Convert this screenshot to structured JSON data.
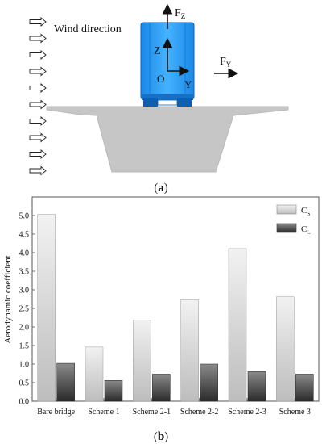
{
  "diagram": {
    "wind_label": "Wind direction",
    "fz_main": "F",
    "fz_sub": "Z",
    "fy_main": "F",
    "fy_sub": "Y",
    "axis_z": "Z",
    "axis_y": "Y",
    "axis_o": "O",
    "caption": "(a)",
    "colors": {
      "train": "#2a9df4",
      "train_dark": "#1070c8",
      "deck": "#c8c8c8"
    }
  },
  "chart_caption": "(b)",
  "chart_data": {
    "type": "bar",
    "ylabel": "Aerodynamic coefficient",
    "xlabel": "",
    "ylim": [
      0,
      5.5
    ],
    "yticks": [
      "0.0",
      "0.5",
      "1.0",
      "1.5",
      "2.0",
      "2.5",
      "3.0",
      "3.5",
      "4.0",
      "4.5",
      "5.0"
    ],
    "categories": [
      "Bare bridge",
      "Scheme 1",
      "Scheme 2-1",
      "Scheme 2-2",
      "Scheme 2-3",
      "Scheme 3"
    ],
    "series": [
      {
        "name": "C",
        "sub": "S",
        "values": [
          5.03,
          1.46,
          2.19,
          2.73,
          4.11,
          2.81
        ],
        "color": "#dcdcdc"
      },
      {
        "name": "C",
        "sub": "L",
        "values": [
          1.02,
          0.56,
          0.73,
          1.0,
          0.8,
          0.73
        ],
        "color": "#4a4a4a"
      }
    ],
    "legend": "top-right",
    "grid": false
  }
}
